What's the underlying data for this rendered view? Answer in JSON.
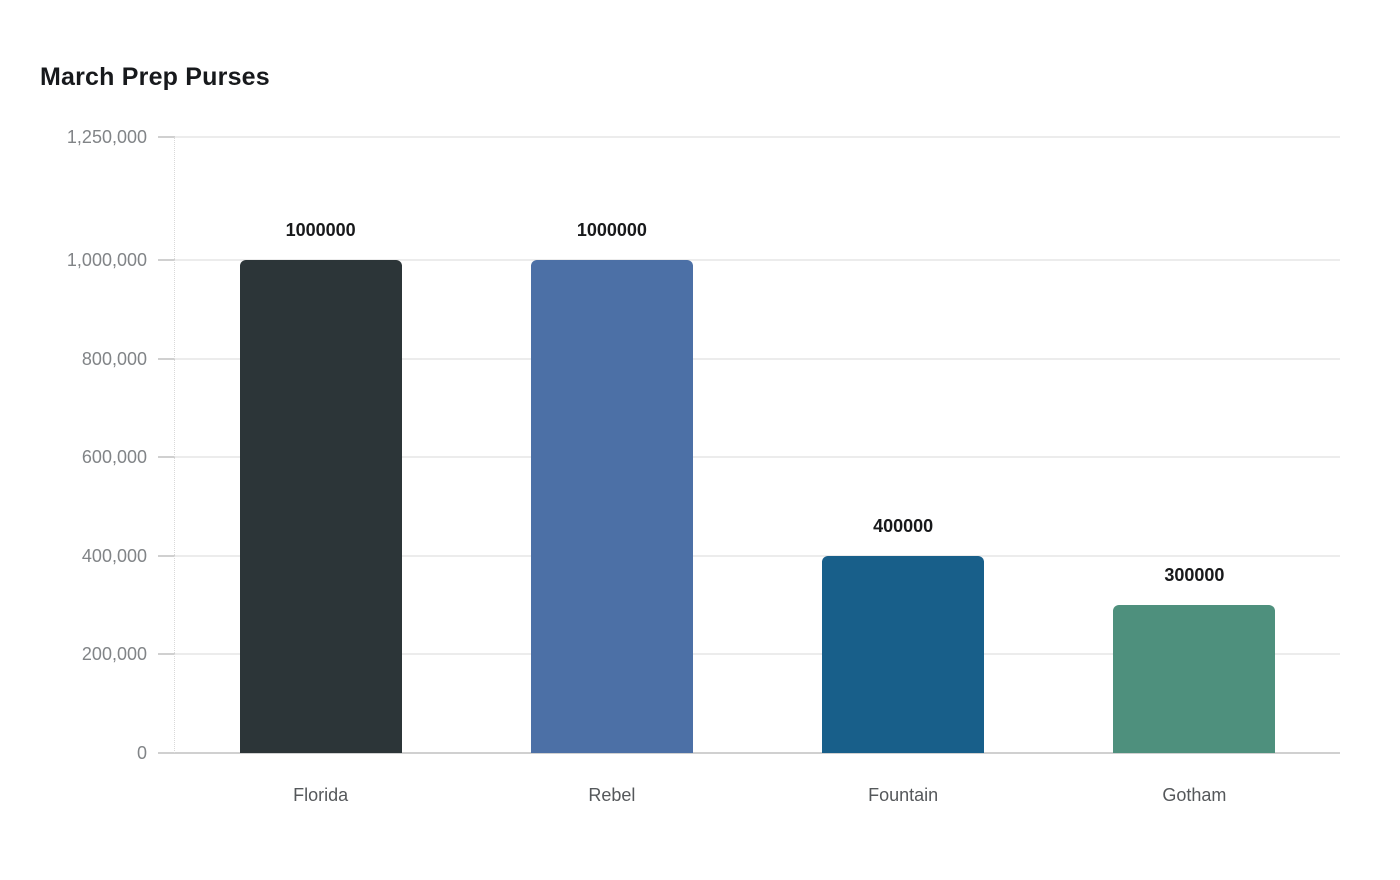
{
  "page": {
    "background": "#ffffff"
  },
  "chart_data": {
    "type": "bar",
    "title": "March Prep Purses",
    "categories": [
      "Florida",
      "Rebel",
      "Fountain",
      "Gotham"
    ],
    "values": [
      1000000,
      1000000,
      400000,
      300000
    ],
    "value_labels": [
      "1000000",
      "1000000",
      "400000",
      "300000"
    ],
    "bar_colors": [
      "#2c3538",
      "#4c70a6",
      "#185f8a",
      "#4e907d"
    ],
    "xlabel": "",
    "ylabel": "",
    "ylim": [
      0,
      1250000
    ],
    "yticks": [
      {
        "value": 0,
        "label": "0"
      },
      {
        "value": 200000,
        "label": "200,000"
      },
      {
        "value": 400000,
        "label": "400,000"
      },
      {
        "value": 600000,
        "label": "600,000"
      },
      {
        "value": 800000,
        "label": "800,000"
      },
      {
        "value": 1000000,
        "label": "1,000,000"
      },
      {
        "value": 1250000,
        "label": "1,250,000"
      }
    ],
    "grid": true,
    "legend": false,
    "colors": {
      "title": "#17191c",
      "grid": "#ececec",
      "baseline": "#d0d0d0",
      "axis_dotted": "#d9d9d9",
      "tick_label": "#818487",
      "x_label": "#55585b",
      "value_label": "#18191b"
    }
  }
}
